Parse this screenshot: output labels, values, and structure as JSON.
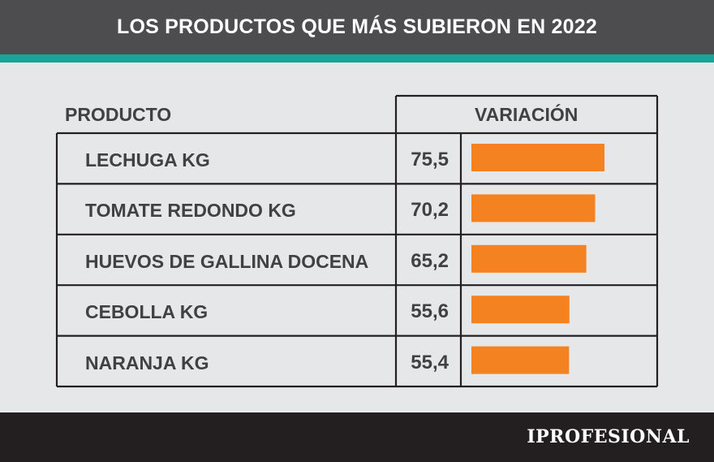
{
  "header": {
    "title": "LOS PRODUCTOS QUE MÁS SUBIERON EN 2022"
  },
  "colors": {
    "header_bg": "#4d4d4f",
    "accent": "#17a598",
    "bar": "#f58220",
    "text": "#414042",
    "background": "#e6e7e8",
    "footer_bg": "#231f20"
  },
  "footer": {
    "brand": "IPROFESIONAL"
  },
  "chart_data": {
    "type": "bar",
    "orientation": "horizontal",
    "title": "LOS PRODUCTOS QUE MÁS SUBIERON EN 2022",
    "column_headers": {
      "product": "PRODUCTO",
      "variation": "VARIACIÓN"
    },
    "categories": [
      "LECHUGA KG",
      "TOMATE REDONDO KG",
      "HUEVOS DE GALLINA DOCENA",
      "CEBOLLA KG",
      "NARANJA KG"
    ],
    "value_labels": [
      "75,5",
      "70,2",
      "65,2",
      "55,6",
      "55,4"
    ],
    "values": [
      75.5,
      70.2,
      65.2,
      55.6,
      55.4
    ],
    "grid": false
  }
}
